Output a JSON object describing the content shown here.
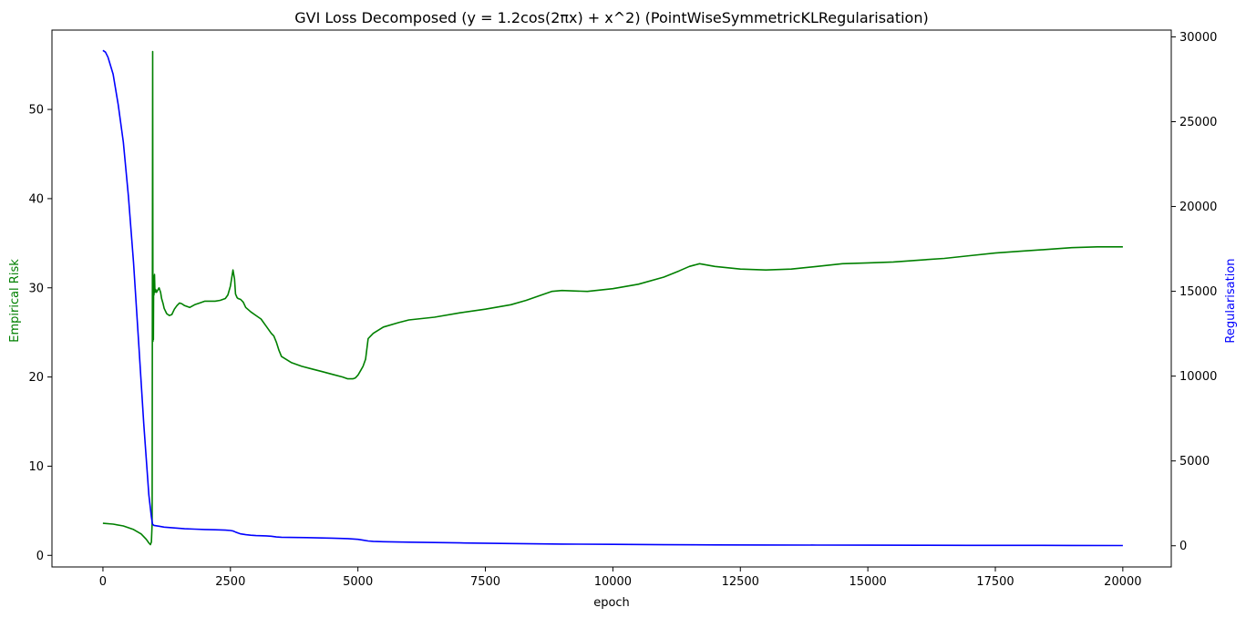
{
  "chart_data": {
    "type": "line",
    "title": "GVI Loss Decomposed (y = 1.2cos(2πx) + x^2) (PointWiseSymmetricKLRegularisation)",
    "xlabel": "epoch",
    "ylabel_left": "Empirical Risk",
    "ylabel_right": "Regularisation",
    "xlim": [
      -1000,
      20950
    ],
    "ylim_left": [
      -1.3,
      58.9
    ],
    "ylim_right": [
      -1250,
      30400
    ],
    "x_ticks": [
      0,
      2500,
      5000,
      7500,
      10000,
      12500,
      15000,
      17500,
      20000
    ],
    "y_left_ticks": [
      0,
      10,
      20,
      30,
      40,
      50
    ],
    "y_right_ticks": [
      0,
      5000,
      10000,
      15000,
      20000,
      25000,
      30000
    ],
    "grid": false,
    "series": [
      {
        "name": "Empirical Risk",
        "axis": "left",
        "color": "#008000",
        "x": [
          0,
          200,
          400,
          600,
          750,
          850,
          900,
          930,
          950,
          965,
          975,
          980,
          985,
          990,
          995,
          1000,
          1010,
          1020,
          1035,
          1050,
          1080,
          1100,
          1130,
          1150,
          1180,
          1200,
          1250,
          1300,
          1350,
          1400,
          1450,
          1500,
          1550,
          1600,
          1650,
          1700,
          1800,
          1900,
          2000,
          2100,
          2200,
          2300,
          2400,
          2450,
          2500,
          2550,
          2580,
          2600,
          2630,
          2650,
          2700,
          2750,
          2800,
          2900,
          3000,
          3100,
          3200,
          3300,
          3350,
          3400,
          3450,
          3500,
          3700,
          3900,
          4100,
          4300,
          4500,
          4700,
          4800,
          4900,
          4950,
          5000,
          5050,
          5100,
          5150,
          5200,
          5250,
          5300,
          5500,
          5800,
          6000,
          6500,
          7000,
          7500,
          8000,
          8300,
          8600,
          8800,
          9000,
          9500,
          10000,
          10500,
          11000,
          11300,
          11500,
          11700,
          12000,
          12500,
          13000,
          13500,
          14000,
          14500,
          15000,
          15500,
          16000,
          16500,
          17000,
          17500,
          18000,
          18500,
          19000,
          19500,
          20000
        ],
        "values": [
          3.6,
          3.5,
          3.3,
          2.9,
          2.4,
          1.8,
          1.4,
          1.2,
          1.5,
          3.5,
          56.5,
          24.0,
          31.0,
          24.2,
          31.3,
          29.2,
          31.5,
          29.5,
          29.8,
          29.5,
          29.8,
          30.0,
          29.5,
          28.8,
          28.2,
          27.7,
          27.1,
          26.9,
          27.0,
          27.6,
          28.0,
          28.3,
          28.2,
          28.0,
          27.9,
          27.8,
          28.1,
          28.3,
          28.5,
          28.5,
          28.5,
          28.6,
          28.8,
          29.2,
          30.2,
          32.0,
          31.0,
          29.3,
          28.9,
          28.8,
          28.7,
          28.4,
          27.8,
          27.3,
          26.9,
          26.5,
          25.7,
          24.9,
          24.6,
          23.9,
          23.0,
          22.3,
          21.6,
          21.2,
          20.9,
          20.6,
          20.3,
          20.0,
          19.8,
          19.8,
          19.9,
          20.2,
          20.7,
          21.2,
          22.0,
          24.3,
          24.6,
          24.9,
          25.6,
          26.1,
          26.4,
          26.7,
          27.2,
          27.6,
          28.1,
          28.6,
          29.2,
          29.6,
          29.7,
          29.6,
          29.9,
          30.4,
          31.2,
          31.9,
          32.4,
          32.7,
          32.4,
          32.1,
          32.0,
          32.1,
          32.4,
          32.7,
          32.8,
          32.9,
          33.1,
          33.3,
          33.6,
          33.9,
          34.1,
          34.3,
          34.5,
          34.6,
          34.6
        ]
      },
      {
        "name": "Regularisation",
        "axis": "right",
        "color": "#0000ff",
        "x": [
          0,
          50,
          100,
          200,
          300,
          400,
          500,
          600,
          700,
          800,
          900,
          950,
          970,
          980,
          1000,
          1100,
          1200,
          1400,
          1600,
          1800,
          2000,
          2200,
          2400,
          2500,
          2550,
          2600,
          2650,
          2700,
          2800,
          2900,
          3000,
          3200,
          3300,
          3400,
          3500,
          4000,
          4500,
          4800,
          5000,
          5100,
          5200,
          5300,
          5500,
          6000,
          7000,
          8000,
          9000,
          10000,
          11000,
          12000,
          13000,
          14000,
          15000,
          16000,
          17000,
          18000,
          19000,
          20000
        ],
        "values": [
          29200,
          29100,
          28800,
          27800,
          26000,
          23800,
          20600,
          16700,
          12000,
          7200,
          3000,
          1700,
          1300,
          1250,
          1200,
          1150,
          1100,
          1050,
          1000,
          980,
          960,
          940,
          920,
          900,
          870,
          810,
          750,
          700,
          650,
          620,
          600,
          580,
          560,
          520,
          500,
          480,
          450,
          420,
          380,
          330,
          280,
          260,
          240,
          210,
          170,
          130,
          100,
          80,
          60,
          50,
          45,
          40,
          35,
          30,
          25,
          22,
          20,
          15
        ]
      }
    ]
  }
}
